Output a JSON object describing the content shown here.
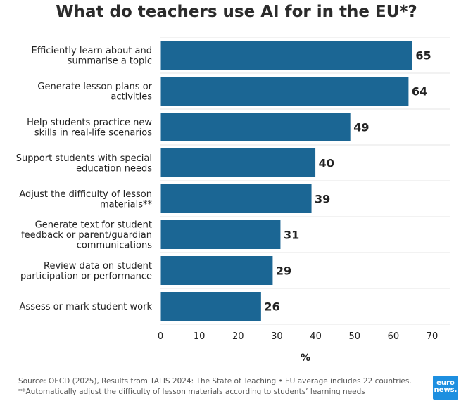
{
  "chart_data": {
    "type": "bar",
    "orientation": "horizontal",
    "title": "What do teachers use AI for in the EU*?",
    "xlabel": "%",
    "ylabel": "",
    "xlim": [
      0,
      70
    ],
    "xticks": [
      "0",
      "10",
      "20",
      "30",
      "40",
      "50",
      "60",
      "70"
    ],
    "grid": true,
    "bar_color": "#1b6694",
    "categories": [
      [
        "Efficiently learn about and",
        "summarise a topic"
      ],
      [
        "Generate lesson plans or",
        "activities"
      ],
      [
        "Help students practice new",
        "skills in real-life scenarios"
      ],
      [
        "Support students with special",
        "education needs"
      ],
      [
        "Adjust the difficulty of lesson",
        "materials**"
      ],
      [
        "Generate text for student",
        "feedback or parent/guardian",
        "communications"
      ],
      [
        "Review data on student",
        "participation or performance"
      ],
      [
        "Assess or mark student work"
      ]
    ],
    "values": [
      65,
      64,
      49,
      40,
      39,
      31,
      29,
      26
    ]
  },
  "footer": {
    "source": "Source: OECD (2025), Results from TALIS 2024: The State of Teaching • EU average includes 22 countries.",
    "note": "**Automatically adjust the difficulty of lesson materials according to students’ learning needs"
  },
  "logo": {
    "line1": "euro",
    "line2": "news.",
    "color": "#1d8fe0"
  }
}
